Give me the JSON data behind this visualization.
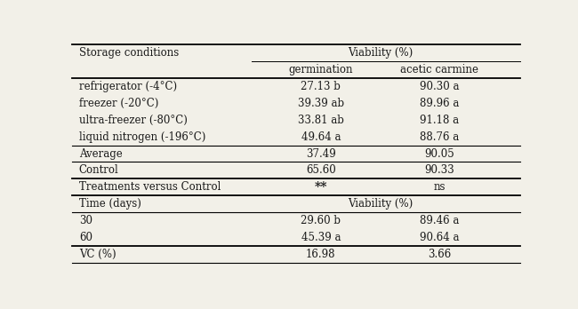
{
  "col0_header": "Storage conditions",
  "col1_header": "germination",
  "col2_header": "acetic carmine",
  "viability_header": "Viability (%)",
  "rows_section1": [
    [
      "refrigerator (-4°C)",
      "27.13 b",
      "90.30 a"
    ],
    [
      "freezer (-20°C)",
      "39.39 ab",
      "89.96 a"
    ],
    [
      "ultra-freezer (-80°C)",
      "33.81 ab",
      "91.18 a"
    ],
    [
      "liquid nitrogen (-196°C)",
      "49.64 a",
      "88.76 a"
    ]
  ],
  "rows_section2": [
    [
      "Average",
      "37.49",
      "90.05"
    ],
    [
      "Control",
      "65.60",
      "90.33"
    ]
  ],
  "rows_section3": [
    [
      "Treatments versus Control",
      "**",
      "ns"
    ]
  ],
  "rows_section4_header": [
    "Time (days)",
    "Viability (%)"
  ],
  "rows_section4": [
    [
      "30",
      "29.60 b",
      "89.46 a"
    ],
    [
      "60",
      "45.39 a",
      "90.64 a"
    ]
  ],
  "rows_section5": [
    [
      "VC (%)",
      "16.98",
      "3.66"
    ]
  ],
  "bg_color": "#f2f0e8",
  "text_color": "#1a1a1a",
  "line_color": "#000000",
  "font_size": 8.5,
  "c0": 0.015,
  "c1": 0.555,
  "c2": 0.82
}
